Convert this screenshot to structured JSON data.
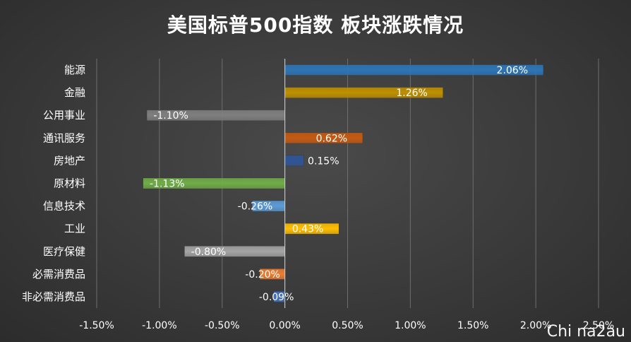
{
  "chart_data": {
    "type": "bar",
    "orientation": "horizontal",
    "title": "美国标普500指数 板块涨跌情况",
    "xlabel": "",
    "ylabel": "",
    "xlim": [
      -0.015,
      0.025
    ],
    "xticks": [
      -0.015,
      -0.01,
      -0.005,
      0,
      0.005,
      0.01,
      0.015,
      0.02,
      0.025
    ],
    "xtick_labels": [
      "-1.50%",
      "-1.00%",
      "-0.50%",
      "0.00%",
      "0.50%",
      "1.00%",
      "1.50%",
      "2.00%",
      "2.50%"
    ],
    "grid": true,
    "categories": [
      "能源",
      "金融",
      "公用事业",
      "通讯服务",
      "房地产",
      "原材料",
      "信息技术",
      "工业",
      "医疗保健",
      "必需消费品",
      "非必需消费品"
    ],
    "values": [
      0.0206,
      0.0126,
      -0.011,
      0.0062,
      0.0015,
      -0.0113,
      -0.0026,
      0.0043,
      -0.008,
      -0.002,
      -0.0009
    ],
    "value_labels": [
      "2.06%",
      "1.26%",
      "-1.10%",
      "0.62%",
      "0.15%",
      "-1.13%",
      "-0.26%",
      "0.43%",
      "-0.80%",
      "-0.20%",
      "-0.09%"
    ],
    "colors": [
      "#2e75b6",
      "#bf9000",
      "#7f7f7f",
      "#c55a11",
      "#2f5597",
      "#70ad47",
      "#5b9bd5",
      "#ffc000",
      "#a5a5a5",
      "#ed7d31",
      "#4472c4"
    ]
  },
  "watermark": "Chi na2au"
}
